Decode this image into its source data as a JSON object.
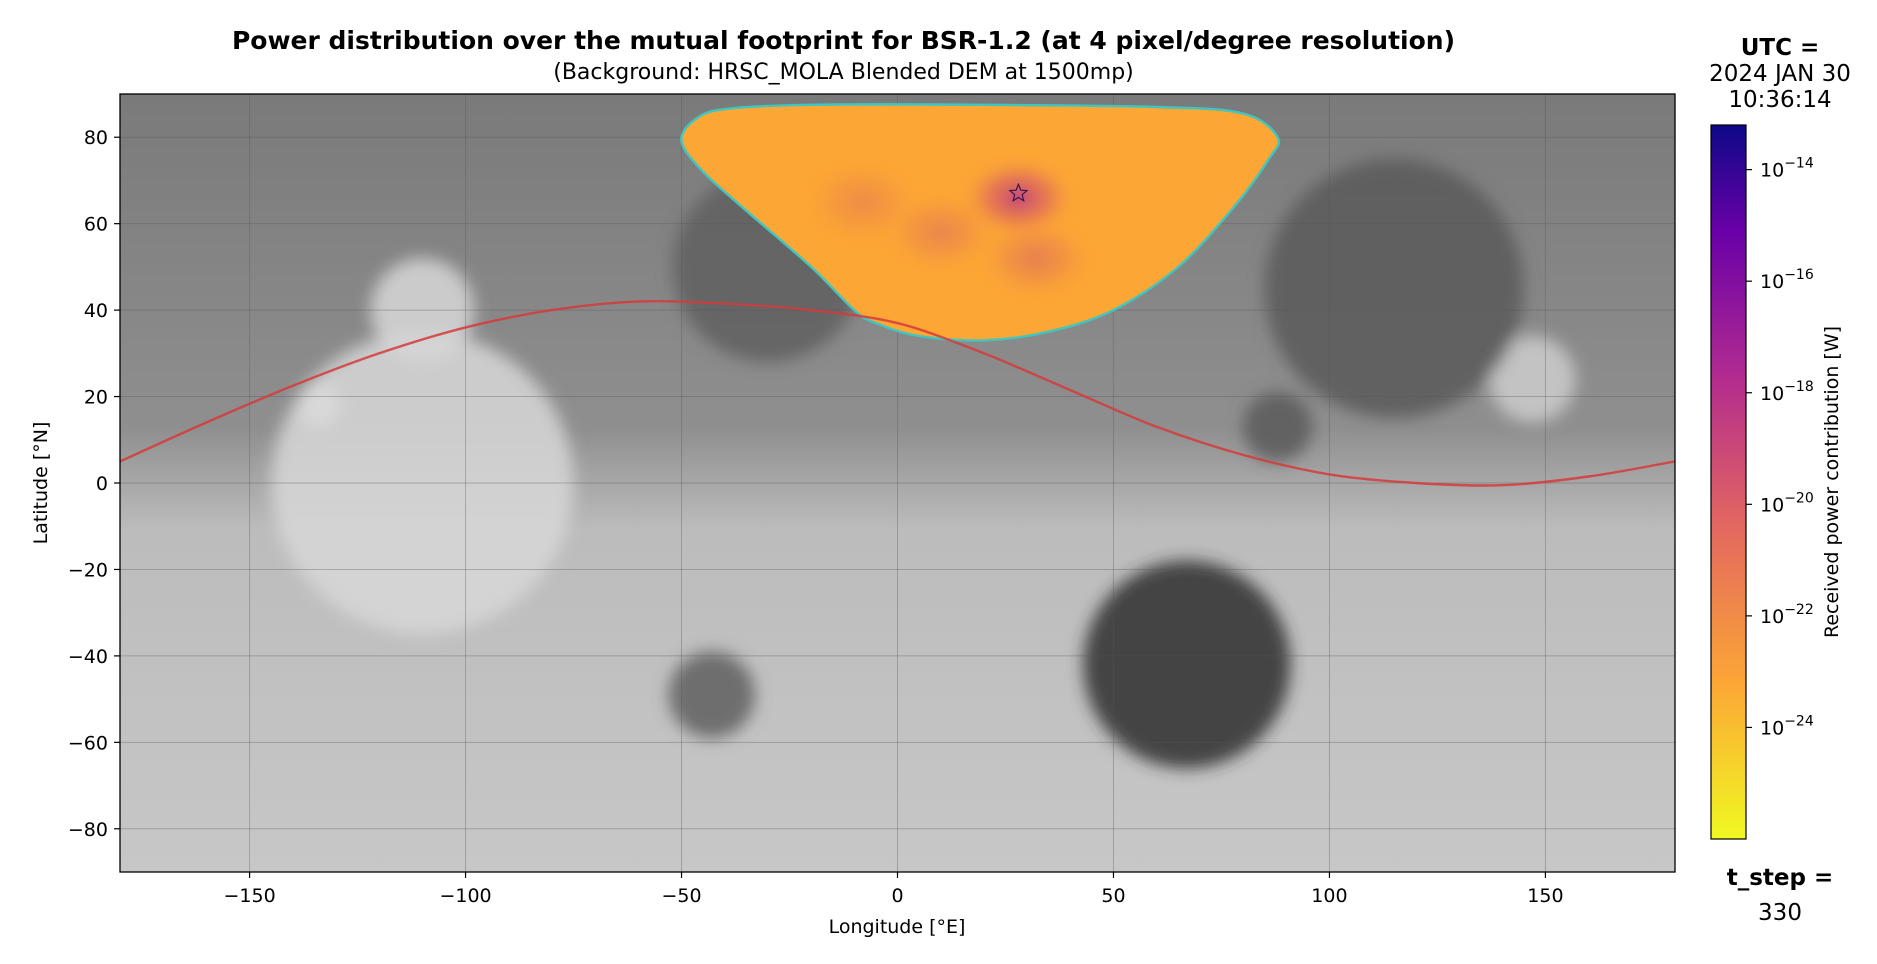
{
  "title": "Power distribution over the mutual footprint for BSR-1.2 (at 4 pixel/degree resolution)",
  "subtitle": "(Background: HRSC_MOLA Blended DEM at 1500mp)",
  "utc": {
    "label": "UTC =",
    "date": "2024 JAN 30",
    "time": "10:36:14"
  },
  "t_step": {
    "label": "t_step =",
    "value": "330"
  },
  "colors": {
    "footprint_outline": "#3fc6c0",
    "ground_track": "#d63a3a",
    "colormap": [
      "#f0f921",
      "#fca636",
      "#e16462",
      "#b12a90",
      "#6a00a8",
      "#0d0887"
    ]
  },
  "chart_data": {
    "type": "heatmap",
    "xlabel": "Longitude [°E]",
    "ylabel": "Latitude [°N]",
    "xlim": [
      -180,
      180
    ],
    "ylim": [
      -90,
      90
    ],
    "xticks": [
      -150,
      -100,
      -50,
      0,
      50,
      100,
      150
    ],
    "xtick_labels": [
      "−150",
      "−100",
      "−50",
      "0",
      "50",
      "100",
      "150"
    ],
    "yticks": [
      -80,
      -60,
      -40,
      -20,
      0,
      20,
      40,
      60,
      80
    ],
    "ytick_labels": [
      "−80",
      "−60",
      "−40",
      "−20",
      "0",
      "20",
      "40",
      "60",
      "80"
    ],
    "grid": true,
    "background": "HRSC_MOLA Blended DEM (grayscale)",
    "colorbar": {
      "label": "Received power contribution [W]",
      "scale": "log",
      "range_exponents": [
        -26,
        -13.2
      ],
      "ticks": [
        {
          "exp": -14,
          "base": "10",
          "sup": "−14"
        },
        {
          "exp": -16,
          "base": "10",
          "sup": "−16"
        },
        {
          "exp": -18,
          "base": "10",
          "sup": "−18"
        },
        {
          "exp": -20,
          "base": "10",
          "sup": "−20"
        },
        {
          "exp": -22,
          "base": "10",
          "sup": "−22"
        },
        {
          "exp": -24,
          "base": "10",
          "sup": "−24"
        }
      ]
    },
    "footprint": {
      "outline": [
        [
          -50,
          79
        ],
        [
          -47,
          84
        ],
        [
          -40,
          86.5
        ],
        [
          -20,
          87.5
        ],
        [
          20,
          87.5
        ],
        [
          60,
          87
        ],
        [
          80,
          85.5
        ],
        [
          88,
          80
        ],
        [
          86,
          75
        ],
        [
          78,
          64
        ],
        [
          65,
          50
        ],
        [
          50,
          40
        ],
        [
          35,
          35
        ],
        [
          20,
          33
        ],
        [
          5,
          34
        ],
        [
          -5,
          37
        ],
        [
          -10,
          40
        ],
        [
          -20,
          50
        ],
        [
          -35,
          63
        ],
        [
          -45,
          72
        ],
        [
          -50,
          79
        ]
      ],
      "peak": {
        "lon": 28,
        "lat": 67
      },
      "peak_marker": "star",
      "hot_spots": [
        {
          "lon": 28,
          "lat": 66,
          "level": 0.75
        },
        {
          "lon": 32,
          "lat": 52,
          "level": 0.3
        },
        {
          "lon": 10,
          "lat": 58,
          "level": 0.25
        },
        {
          "lon": -8,
          "lat": 65,
          "level": 0.2
        }
      ]
    },
    "ground_track": {
      "lon": [
        -180,
        -160,
        -140,
        -120,
        -100,
        -80,
        -60,
        -40,
        -20,
        0,
        20,
        40,
        60,
        80,
        100,
        120,
        140,
        160,
        180
      ],
      "lat": [
        5,
        14,
        22.5,
        30,
        36,
        40,
        42,
        41.5,
        40,
        37,
        30,
        21.5,
        13,
        6.5,
        2,
        0,
        -0.5,
        1.5,
        5
      ]
    },
    "dem_features": [
      {
        "name": "Olympus Mons",
        "lon": -134,
        "lat": 18,
        "r": 5,
        "tone": 245
      },
      {
        "name": "Tharsis",
        "lon": -110,
        "lat": 0,
        "r": 35,
        "tone": 215
      },
      {
        "name": "Alba Mons",
        "lon": -110,
        "lat": 40,
        "r": 12,
        "tone": 215
      },
      {
        "name": "Elysium",
        "lon": 147,
        "lat": 24,
        "r": 10,
        "tone": 205
      },
      {
        "name": "Hellas",
        "lon": 67,
        "lat": -42,
        "r": 24,
        "tone": 48
      },
      {
        "name": "Argyre",
        "lon": -43,
        "lat": -49,
        "r": 10,
        "tone": 95
      },
      {
        "name": "Isidis",
        "lon": 88,
        "lat": 13,
        "r": 8,
        "tone": 90
      },
      {
        "name": "Utopia",
        "lon": 115,
        "lat": 45,
        "r": 30,
        "tone": 90
      },
      {
        "name": "Acidalia",
        "lon": -30,
        "lat": 50,
        "r": 22,
        "tone": 95
      }
    ]
  }
}
